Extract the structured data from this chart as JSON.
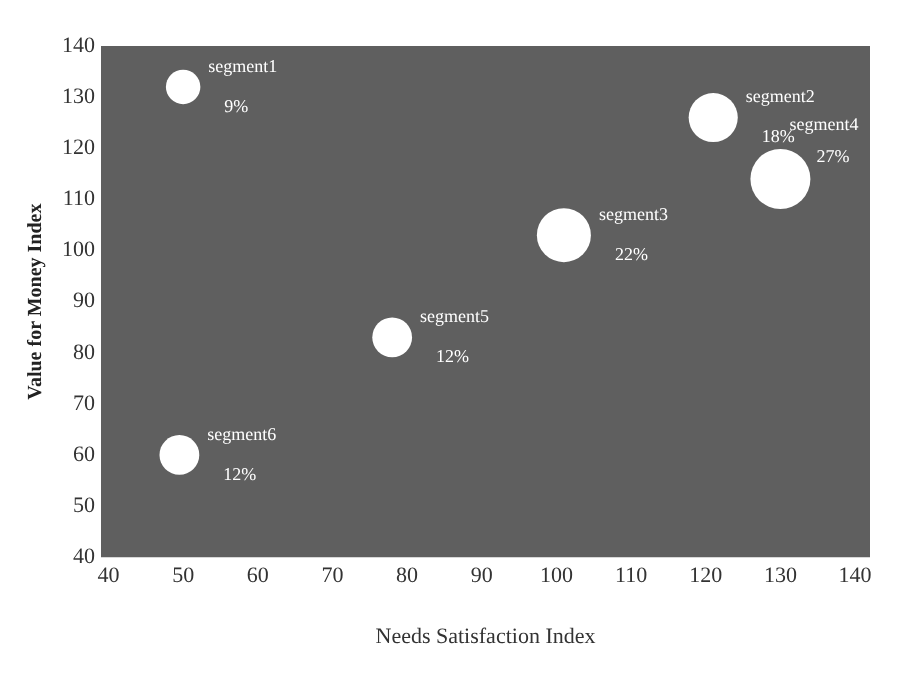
{
  "chart_data": {
    "type": "bubble",
    "xlabel": "Needs Satisfaction Index",
    "ylabel": "Value for Money Index",
    "series": [
      {
        "name": "segment1",
        "color": "#ffffff",
        "x": [
          50
        ],
        "values": [
          132
        ],
        "sizes": [
          0.33
        ]
      },
      {
        "name": "segment2",
        "color": "#ffffff",
        "x": [
          121
        ],
        "values": [
          126
        ],
        "sizes": [
          0.67
        ]
      },
      {
        "name": "segment3",
        "color": "#ffffff",
        "x": [
          101
        ],
        "values": [
          103
        ],
        "sizes": [
          0.81
        ]
      },
      {
        "name": "segment4",
        "color": "#ffffff",
        "x": [
          130
        ],
        "values": [
          114
        ],
        "sizes": [
          1
        ]
      },
      {
        "name": "segment5",
        "color": "#ffffff",
        "x": [
          78
        ],
        "values": [
          83
        ],
        "sizes": [
          0.44
        ]
      },
      {
        "name": "segment6",
        "color": "#ffffff",
        "x": [
          49.5
        ],
        "values": [
          60
        ],
        "sizes": [
          0.44
        ]
      }
    ],
    "annotations": [
      {
        "text": "9%",
        "x": 50,
        "y": 132
      },
      {
        "text": "18%",
        "x": 121,
        "y": 126
      },
      {
        "text": "22%",
        "x": 101,
        "y": 103
      },
      {
        "text": "27%",
        "x": 130,
        "y": 114
      },
      {
        "text": "12%",
        "x": 78,
        "y": 83
      },
      {
        "text": "12%",
        "x": 49.5,
        "y": 60
      }
    ],
    "xlim": [
      39,
      142
    ],
    "xticks": [
      40,
      50,
      60,
      70,
      80,
      90,
      100,
      110,
      120,
      130,
      140
    ],
    "ylim": [
      40,
      140
    ],
    "yticks": [
      40,
      50,
      60,
      70,
      80,
      90,
      100,
      110,
      120,
      130,
      140
    ],
    "grid": false,
    "legend": false
  }
}
